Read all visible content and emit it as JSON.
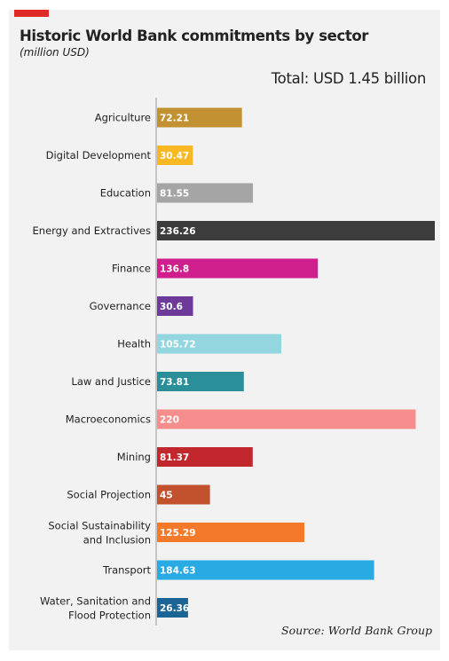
{
  "header": {
    "title": "Historic World Bank commitments by sector",
    "subtitle": "(million USD)",
    "total": "Total: USD 1.45 billion",
    "accent_color": "#e02a26"
  },
  "footer": {
    "source": "Source: World Bank Group"
  },
  "chart_data": {
    "type": "bar",
    "orientation": "horizontal",
    "title": "Historic World Bank commitments by sector",
    "subtitle": "(million USD)",
    "annotation": "Total: USD 1.45 billion",
    "grid": false,
    "categories": [
      "Agriculture",
      "Digital Development",
      "Education",
      "Energy and Extractives",
      "Finance",
      "Governance",
      "Health",
      "Law and Justice",
      "Macroeconomics",
      "Mining",
      "Social Projection",
      "Social Sustainability and Inclusion",
      "Transport",
      "Water, Sanitation and Flood Protection"
    ],
    "values": [
      72.21,
      30.47,
      81.55,
      236.26,
      136.8,
      30.6,
      105.72,
      73.81,
      220,
      81.37,
      45,
      125.29,
      184.63,
      26.36
    ],
    "value_labels": [
      "72.21",
      "30.47",
      "81.55",
      "236.26",
      "136.8",
      "30.6",
      "105.72",
      "73.81",
      "220",
      "81.37",
      "45",
      "125.29",
      "184.63",
      "26.36"
    ],
    "colors": [
      "#c29232",
      "#f8b824",
      "#a5a5a5",
      "#3c3c3c",
      "#cf1f8d",
      "#6e3a99",
      "#94d6e0",
      "#2a8f99",
      "#f58e8c",
      "#c1272d",
      "#c2522e",
      "#f37a2a",
      "#2aaae2",
      "#1b6496"
    ],
    "xlim": [
      0,
      236.26
    ],
    "source": "Source: World Bank Group"
  }
}
